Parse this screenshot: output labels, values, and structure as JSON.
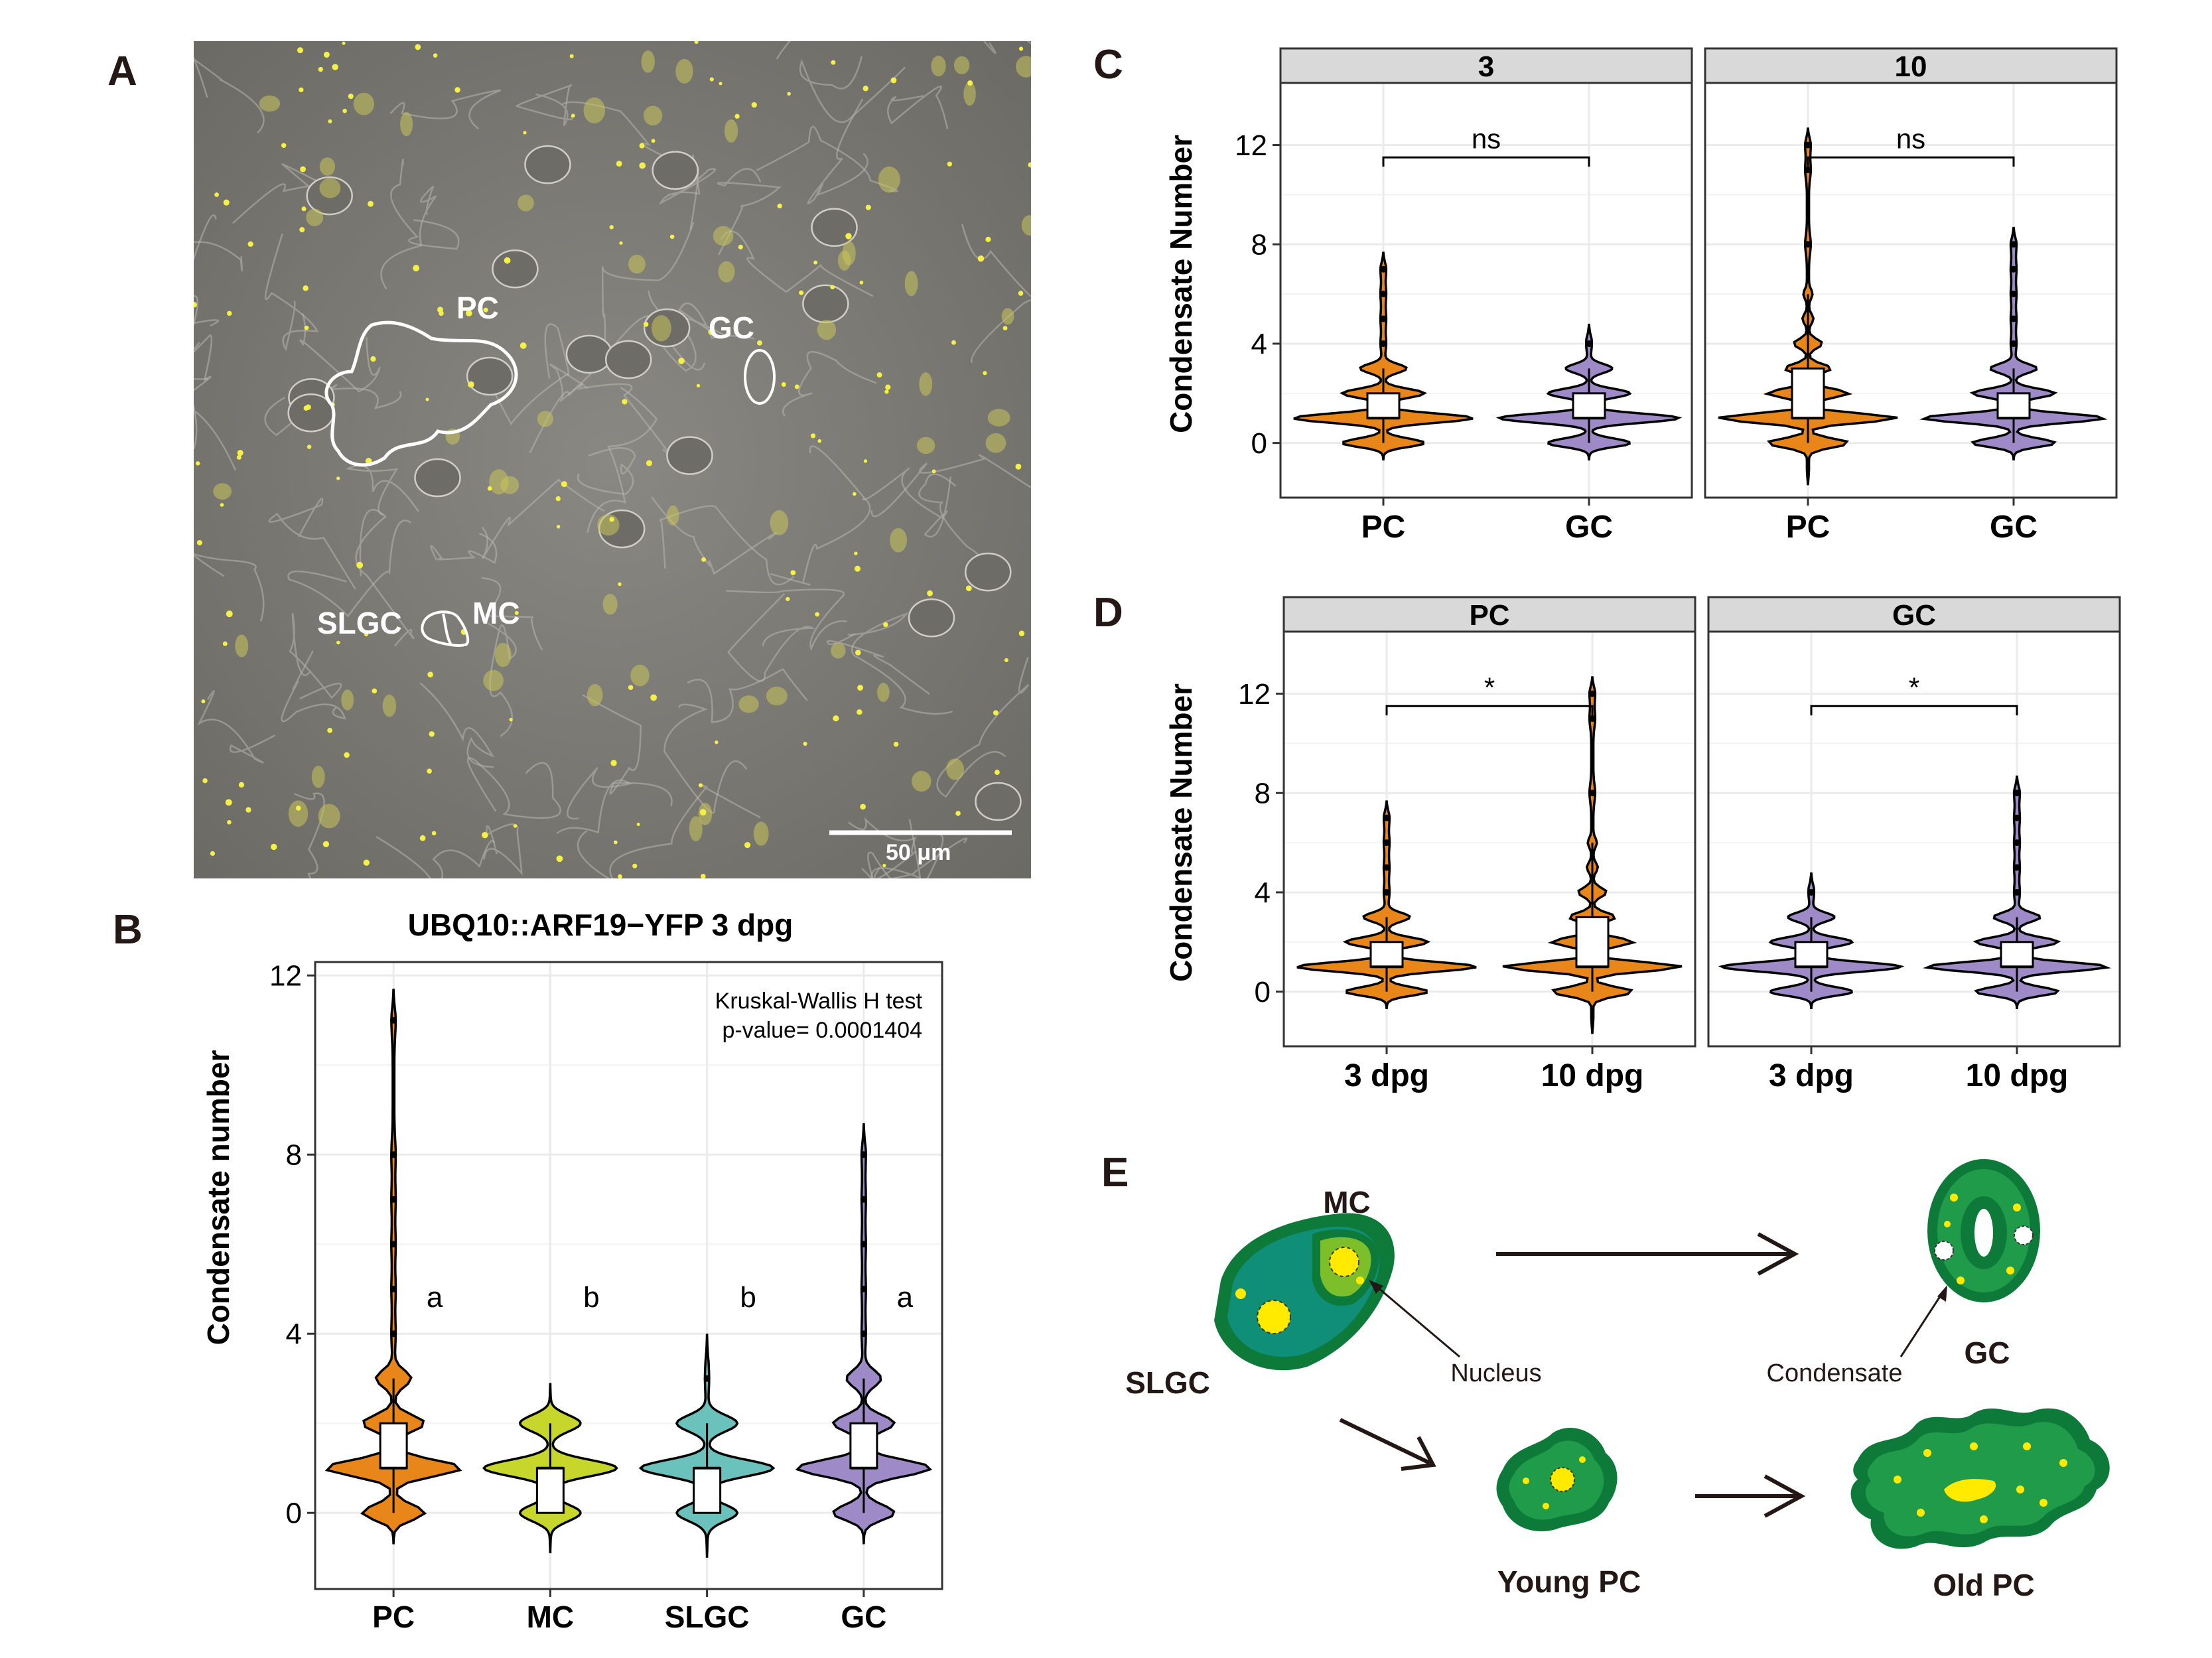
{
  "panel_letters": {
    "a": "A",
    "b": "B",
    "c": "C",
    "d": "D",
    "e": "E"
  },
  "micrograph": {
    "labels": {
      "pc": "PC",
      "gc": "GC",
      "slgc": "SLGC",
      "mc": "MC"
    },
    "scale_bar_label": "50 μm",
    "colors": {
      "background": "#7d7b76",
      "condensate": "#f5f046",
      "outline": "#ffffff"
    }
  },
  "colors": {
    "PC": "#e8861a",
    "MC": "#c7d62a",
    "SLGC": "#6bc1bb",
    "GC": "#9d8ac6",
    "strip": "#d9d9d9",
    "grid": "#ebebeb"
  },
  "chart_data": [
    {
      "id": "B",
      "type": "violin",
      "title": "UBQ10::ARF19−YFP 3 dpg",
      "xlabel": "",
      "ylabel": "Condensate number",
      "categories": [
        "PC",
        "MC",
        "SLGC",
        "GC"
      ],
      "ylim": [
        -1.7,
        12.3
      ],
      "yticks": [
        0,
        4,
        8,
        12
      ],
      "annotation": [
        "Kruskal-Wallis H test",
        "p-value= 0.0001404"
      ],
      "letters": [
        "a",
        "b",
        "b",
        "a"
      ],
      "grid": true,
      "series": [
        {
          "name": "PC",
          "color": "#e8861a",
          "min": -0.7,
          "max": 11.7,
          "q1": 1,
          "median": 1,
          "q3": 2,
          "whisker_low": 0,
          "whisker_high": 3,
          "outliers": [
            4,
            5,
            6,
            7,
            8,
            11
          ]
        },
        {
          "name": "MC",
          "color": "#c7d62a",
          "min": -0.9,
          "max": 2.9,
          "q1": 0,
          "median": 1,
          "q3": 1,
          "whisker_low": 0,
          "whisker_high": 2,
          "outliers": []
        },
        {
          "name": "SLGC",
          "color": "#6bc1bb",
          "min": -1.0,
          "max": 4.0,
          "q1": 0,
          "median": 1,
          "q3": 1,
          "whisker_low": 0,
          "whisker_high": 2,
          "outliers": [
            3
          ]
        },
        {
          "name": "GC",
          "color": "#9d8ac6",
          "min": -0.7,
          "max": 8.7,
          "q1": 1,
          "median": 1,
          "q3": 2,
          "whisker_low": 0,
          "whisker_high": 3,
          "outliers": [
            4,
            5,
            6,
            7,
            8
          ]
        }
      ]
    },
    {
      "id": "C",
      "type": "violin",
      "ylabel": "Condensate Number",
      "ylim": [
        -2.2,
        14.5
      ],
      "yticks": [
        0,
        4,
        8,
        12
      ],
      "grid": true,
      "facets": [
        {
          "strip": "3",
          "categories": [
            "PC",
            "GC"
          ],
          "significance": "ns",
          "series": [
            {
              "name": "PC",
              "color": "#e8861a",
              "min": -0.7,
              "max": 7.7,
              "q1": 1,
              "median": 1,
              "q3": 2,
              "whisker_low": 0,
              "whisker_high": 3,
              "outliers": [
                4,
                5,
                6,
                7
              ]
            },
            {
              "name": "GC",
              "color": "#9d8ac6",
              "min": -0.7,
              "max": 4.8,
              "q1": 1,
              "median": 1,
              "q3": 2,
              "whisker_low": 0,
              "whisker_high": 3,
              "outliers": [
                4
              ]
            }
          ]
        },
        {
          "strip": "10",
          "categories": [
            "PC",
            "GC"
          ],
          "significance": "ns",
          "series": [
            {
              "name": "PC",
              "color": "#e8861a",
              "min": -1.7,
              "max": 12.7,
              "q1": 1,
              "median": 1,
              "q3": 3,
              "whisker_low": 0,
              "whisker_high": 6,
              "outliers": [
                8,
                11,
                12
              ]
            },
            {
              "name": "GC",
              "color": "#9d8ac6",
              "min": -0.7,
              "max": 8.7,
              "q1": 1,
              "median": 1,
              "q3": 2,
              "whisker_low": 0,
              "whisker_high": 3,
              "outliers": [
                4,
                5,
                6,
                7,
                8
              ]
            }
          ]
        }
      ]
    },
    {
      "id": "D",
      "type": "violin",
      "ylabel": "Condensate Number",
      "ylim": [
        -2.2,
        14.5
      ],
      "yticks": [
        0,
        4,
        8,
        12
      ],
      "grid": true,
      "facets": [
        {
          "strip": "PC",
          "categories": [
            "3 dpg",
            "10 dpg"
          ],
          "significance": "*",
          "series": [
            {
              "name": "3 dpg",
              "color": "#e8861a",
              "min": -0.7,
              "max": 7.7,
              "q1": 1,
              "median": 1,
              "q3": 2,
              "whisker_low": 0,
              "whisker_high": 3,
              "outliers": [
                4,
                5,
                6,
                7
              ]
            },
            {
              "name": "10 dpg",
              "color": "#e8861a",
              "min": -1.7,
              "max": 12.7,
              "q1": 1,
              "median": 1,
              "q3": 3,
              "whisker_low": 0,
              "whisker_high": 6,
              "outliers": [
                8,
                11,
                12
              ]
            }
          ]
        },
        {
          "strip": "GC",
          "categories": [
            "3 dpg",
            "10 dpg"
          ],
          "significance": "*",
          "series": [
            {
              "name": "3 dpg",
              "color": "#9d8ac6",
              "min": -0.7,
              "max": 4.8,
              "q1": 1,
              "median": 1,
              "q3": 2,
              "whisker_low": 0,
              "whisker_high": 3,
              "outliers": [
                4
              ]
            },
            {
              "name": "10 dpg",
              "color": "#9d8ac6",
              "min": -0.7,
              "max": 8.7,
              "q1": 1,
              "median": 1,
              "q3": 2,
              "whisker_low": 0,
              "whisker_high": 3,
              "outliers": [
                4,
                5,
                6,
                7,
                8
              ]
            }
          ]
        }
      ]
    }
  ],
  "diagram_e": {
    "labels": {
      "mc": "MC",
      "slgc": "SLGC",
      "nucleus": "Nucleus",
      "condensate": "Condensate",
      "gc": "GC",
      "young_pc": "Young PC",
      "old_pc": "Old PC"
    },
    "colors": {
      "dark_green": "#0d7a3a",
      "mid_green": "#1f9b4a",
      "teal": "#0f8f78",
      "light_green": "#7dbf2a",
      "nucleus": "#ffea00",
      "arrow": "#231815"
    }
  }
}
